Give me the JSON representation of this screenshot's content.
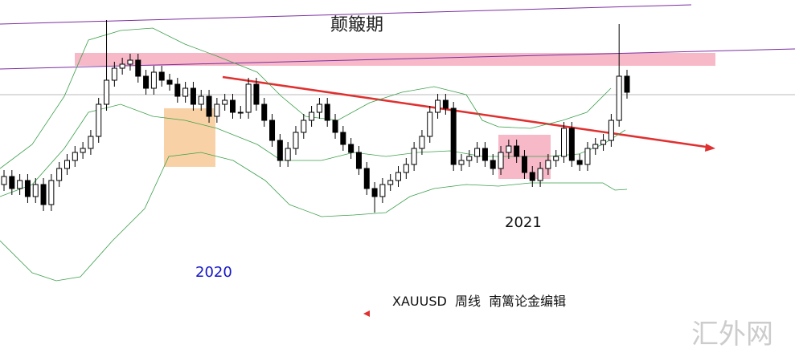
{
  "chart_data": {
    "type": "candlestick",
    "title": "颠簸期",
    "annotations": [
      "2021",
      "2020",
      "XAUUSD  周线  南篱论金编辑"
    ],
    "watermark": "汇外网",
    "up_color": "#ffffff",
    "down_color": "#000000",
    "ylim": [
      0,
      445
    ],
    "open": [
      215,
      225,
      210,
      220,
      200,
      215,
      190,
      220,
      235,
      245,
      255,
      260,
      275,
      315,
      345,
      360,
      365,
      370,
      350,
      335,
      355,
      345,
      340,
      325,
      335,
      315,
      325,
      300,
      315,
      320,
      305,
      305,
      340,
      315,
      295,
      270,
      245,
      260,
      280,
      295,
      305,
      315,
      295,
      280,
      265,
      255,
      235,
      210,
      200,
      215,
      220,
      230,
      240,
      260,
      275,
      305,
      320,
      310,
      240,
      245,
      250,
      260,
      245,
      235,
      255,
      263,
      250,
      230,
      220,
      235,
      245,
      250,
      285,
      245,
      240,
      260,
      265,
      270,
      295,
      350
    ],
    "high": [
      233,
      233,
      228,
      228,
      223,
      223,
      228,
      243,
      253,
      263,
      268,
      283,
      323,
      420,
      368,
      373,
      378,
      378,
      358,
      363,
      363,
      353,
      348,
      343,
      343,
      333,
      333,
      323,
      328,
      328,
      313,
      348,
      348,
      323,
      303,
      278,
      268,
      288,
      303,
      313,
      323,
      323,
      303,
      288,
      273,
      263,
      243,
      218,
      223,
      228,
      238,
      248,
      268,
      283,
      313,
      328,
      328,
      318,
      253,
      258,
      268,
      268,
      253,
      263,
      271,
      271,
      258,
      238,
      243,
      253,
      258,
      293,
      293,
      253,
      268,
      273,
      278,
      303,
      415,
      358
    ],
    "low": [
      207,
      202,
      202,
      192,
      192,
      182,
      182,
      212,
      227,
      237,
      247,
      252,
      267,
      307,
      337,
      352,
      357,
      342,
      327,
      327,
      337,
      332,
      317,
      317,
      307,
      307,
      292,
      292,
      307,
      297,
      297,
      297,
      307,
      287,
      262,
      237,
      237,
      252,
      272,
      287,
      297,
      287,
      272,
      257,
      247,
      227,
      202,
      180,
      192,
      207,
      212,
      222,
      232,
      252,
      267,
      297,
      302,
      232,
      232,
      237,
      242,
      237,
      227,
      227,
      247,
      242,
      222,
      212,
      212,
      227,
      237,
      242,
      237,
      232,
      232,
      252,
      257,
      262,
      287,
      322
    ],
    "close": [
      225,
      210,
      220,
      200,
      215,
      190,
      220,
      235,
      245,
      255,
      260,
      275,
      315,
      345,
      360,
      365,
      370,
      350,
      335,
      355,
      345,
      340,
      325,
      335,
      315,
      325,
      300,
      315,
      320,
      305,
      305,
      340,
      315,
      295,
      270,
      245,
      260,
      280,
      295,
      305,
      315,
      295,
      280,
      265,
      255,
      235,
      210,
      200,
      215,
      220,
      230,
      240,
      260,
      275,
      305,
      320,
      310,
      240,
      245,
      250,
      260,
      245,
      235,
      255,
      263,
      250,
      230,
      220,
      235,
      245,
      250,
      285,
      245,
      240,
      260,
      265,
      270,
      295,
      350,
      330
    ]
  }
}
